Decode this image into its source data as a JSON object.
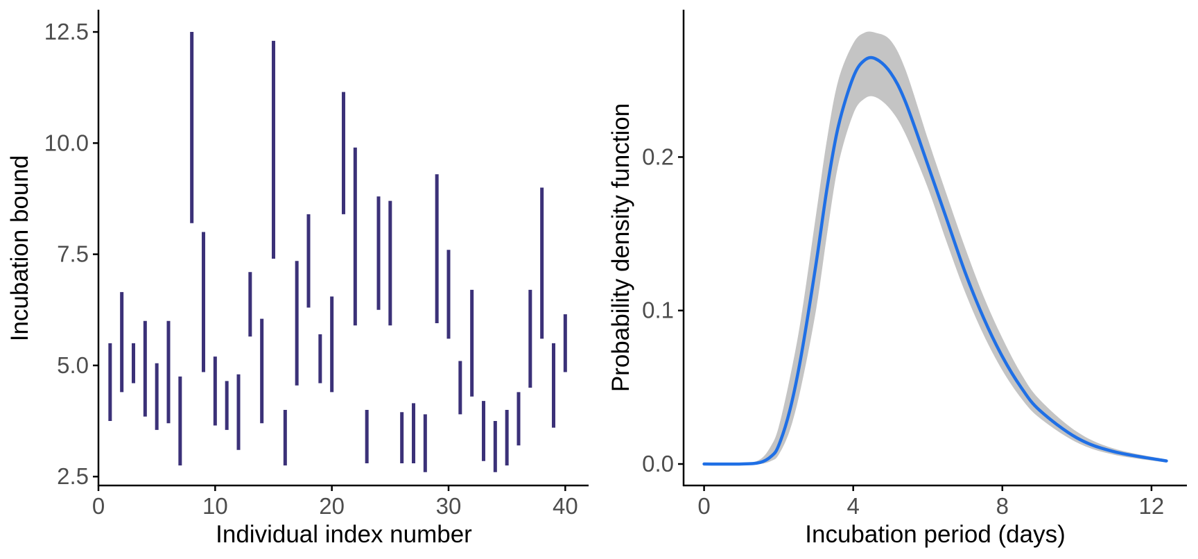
{
  "chart_data": [
    {
      "type": "interval",
      "xlabel": "Individual index number",
      "ylabel": "Incubation bound",
      "xlim": [
        0,
        42
      ],
      "ylim": [
        2.3,
        13.0
      ],
      "x_ticks": [
        0,
        10,
        20,
        30,
        40
      ],
      "x_tick_labels": [
        "0",
        "10",
        "20",
        "30",
        "40"
      ],
      "y_ticks": [
        2.5,
        5.0,
        7.5,
        10.0,
        12.5
      ],
      "y_tick_labels": [
        "2.5",
        "5.0",
        "7.5",
        "10.0",
        "12.5"
      ],
      "grid": false,
      "color": "#3b3178",
      "intervals": [
        {
          "x": 1,
          "low": 3.75,
          "high": 5.5
        },
        {
          "x": 2,
          "low": 4.4,
          "high": 6.65
        },
        {
          "x": 3,
          "low": 4.6,
          "high": 5.5
        },
        {
          "x": 4,
          "low": 3.85,
          "high": 6.0
        },
        {
          "x": 5,
          "low": 3.55,
          "high": 5.05
        },
        {
          "x": 6,
          "low": 3.7,
          "high": 6.0
        },
        {
          "x": 7,
          "low": 2.75,
          "high": 4.75
        },
        {
          "x": 8,
          "low": 8.2,
          "high": 12.5
        },
        {
          "x": 9,
          "low": 4.85,
          "high": 8.0
        },
        {
          "x": 10,
          "low": 3.65,
          "high": 5.2
        },
        {
          "x": 11,
          "low": 3.55,
          "high": 4.65
        },
        {
          "x": 12,
          "low": 3.1,
          "high": 4.8
        },
        {
          "x": 13,
          "low": 5.65,
          "high": 7.1
        },
        {
          "x": 14,
          "low": 3.7,
          "high": 6.05
        },
        {
          "x": 15,
          "low": 7.4,
          "high": 12.3
        },
        {
          "x": 16,
          "low": 2.75,
          "high": 4.0
        },
        {
          "x": 17,
          "low": 4.55,
          "high": 7.35
        },
        {
          "x": 18,
          "low": 6.3,
          "high": 8.4
        },
        {
          "x": 19,
          "low": 4.6,
          "high": 5.7
        },
        {
          "x": 20,
          "low": 4.4,
          "high": 6.55
        },
        {
          "x": 21,
          "low": 8.4,
          "high": 11.15
        },
        {
          "x": 22,
          "low": 5.9,
          "high": 9.9
        },
        {
          "x": 23,
          "low": 2.8,
          "high": 4.0
        },
        {
          "x": 24,
          "low": 6.25,
          "high": 8.8
        },
        {
          "x": 25,
          "low": 5.9,
          "high": 8.7
        },
        {
          "x": 26,
          "low": 2.8,
          "high": 3.95
        },
        {
          "x": 27,
          "low": 2.8,
          "high": 4.15
        },
        {
          "x": 28,
          "low": 2.6,
          "high": 3.9
        },
        {
          "x": 29,
          "low": 5.95,
          "high": 9.3
        },
        {
          "x": 30,
          "low": 5.6,
          "high": 7.6
        },
        {
          "x": 31,
          "low": 3.9,
          "high": 5.1
        },
        {
          "x": 32,
          "low": 4.3,
          "high": 6.7
        },
        {
          "x": 33,
          "low": 2.85,
          "high": 4.2
        },
        {
          "x": 34,
          "low": 2.6,
          "high": 3.75
        },
        {
          "x": 35,
          "low": 2.75,
          "high": 4.0
        },
        {
          "x": 36,
          "low": 3.2,
          "high": 4.4
        },
        {
          "x": 37,
          "low": 4.5,
          "high": 6.7
        },
        {
          "x": 38,
          "low": 5.6,
          "high": 9.0
        },
        {
          "x": 39,
          "low": 3.6,
          "high": 5.5
        },
        {
          "x": 40,
          "low": 4.85,
          "high": 6.15
        }
      ]
    },
    {
      "type": "line",
      "xlabel": "Incubation period (days)",
      "ylabel": "Probability density function",
      "xlim": [
        -0.55,
        12.95
      ],
      "ylim": [
        -0.014,
        0.296
      ],
      "x_ticks": [
        0,
        4,
        8,
        12
      ],
      "x_tick_labels": [
        "0",
        "4",
        "8",
        "12"
      ],
      "y_ticks": [
        0.0,
        0.1,
        0.2
      ],
      "y_tick_labels": [
        "0.0",
        "0.1",
        "0.2"
      ],
      "grid": false,
      "line_color": "#1f6fe5",
      "band_color": "#c4c4c4",
      "x": [
        0,
        1.0,
        1.5,
        1.8,
        2.0,
        2.3,
        2.6,
        3.0,
        3.3,
        3.6,
        4.0,
        4.3,
        4.6,
        5.0,
        5.4,
        6.0,
        6.5,
        7.0,
        7.5,
        8.0,
        8.5,
        9.0,
        10.0,
        11.0,
        12.4
      ],
      "y": [
        0.0,
        0.0,
        0.001,
        0.005,
        0.012,
        0.035,
        0.07,
        0.13,
        0.18,
        0.22,
        0.252,
        0.263,
        0.264,
        0.255,
        0.236,
        0.195,
        0.16,
        0.125,
        0.095,
        0.07,
        0.05,
        0.035,
        0.017,
        0.008,
        0.002
      ],
      "y_lower": [
        0.0,
        0.0,
        0.0,
        0.002,
        0.006,
        0.022,
        0.05,
        0.1,
        0.15,
        0.195,
        0.228,
        0.238,
        0.239,
        0.231,
        0.215,
        0.18,
        0.145,
        0.112,
        0.084,
        0.061,
        0.043,
        0.03,
        0.014,
        0.006,
        0.001
      ],
      "y_upper": [
        0.0,
        0.0,
        0.003,
        0.012,
        0.024,
        0.056,
        0.095,
        0.162,
        0.212,
        0.25,
        0.274,
        0.281,
        0.281,
        0.276,
        0.257,
        0.212,
        0.176,
        0.141,
        0.109,
        0.082,
        0.059,
        0.042,
        0.021,
        0.01,
        0.003
      ]
    }
  ]
}
